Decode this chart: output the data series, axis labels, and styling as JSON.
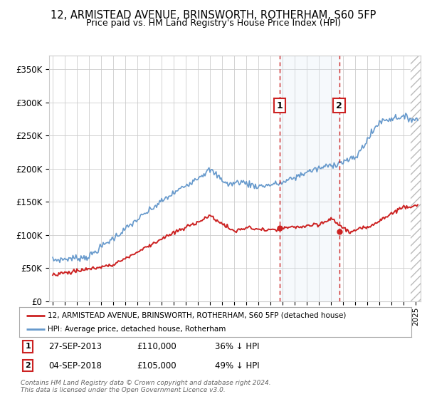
{
  "title": "12, ARMISTEAD AVENUE, BRINSWORTH, ROTHERHAM, S60 5FP",
  "subtitle": "Price paid vs. HM Land Registry's House Price Index (HPI)",
  "ylim": [
    0,
    370000
  ],
  "yticks": [
    0,
    50000,
    100000,
    150000,
    200000,
    250000,
    300000,
    350000
  ],
  "ytick_labels": [
    "£0",
    "£50K",
    "£100K",
    "£150K",
    "£200K",
    "£250K",
    "£300K",
    "£350K"
  ],
  "xlim_start": 1994.7,
  "xlim_end": 2025.4,
  "hpi_color": "#6699cc",
  "price_color": "#cc2222",
  "sale1_date": 2013.74,
  "sale1_price": 110000,
  "sale2_date": 2018.67,
  "sale2_price": 105000,
  "sale1_label": "27-SEP-2013",
  "sale1_amount": "£110,000",
  "sale1_hpi": "36% ↓ HPI",
  "sale2_label": "04-SEP-2018",
  "sale2_amount": "£105,000",
  "sale2_hpi": "49% ↓ HPI",
  "legend1": "12, ARMISTEAD AVENUE, BRINSWORTH, ROTHERHAM, S60 5FP (detached house)",
  "legend2": "HPI: Average price, detached house, Rotherham",
  "footnote1": "Contains HM Land Registry data © Crown copyright and database right 2024.",
  "footnote2": "This data is licensed under the Open Government Licence v3.0.",
  "bg_shading_color": "#dce9f5",
  "hatch_start": 2024.58
}
